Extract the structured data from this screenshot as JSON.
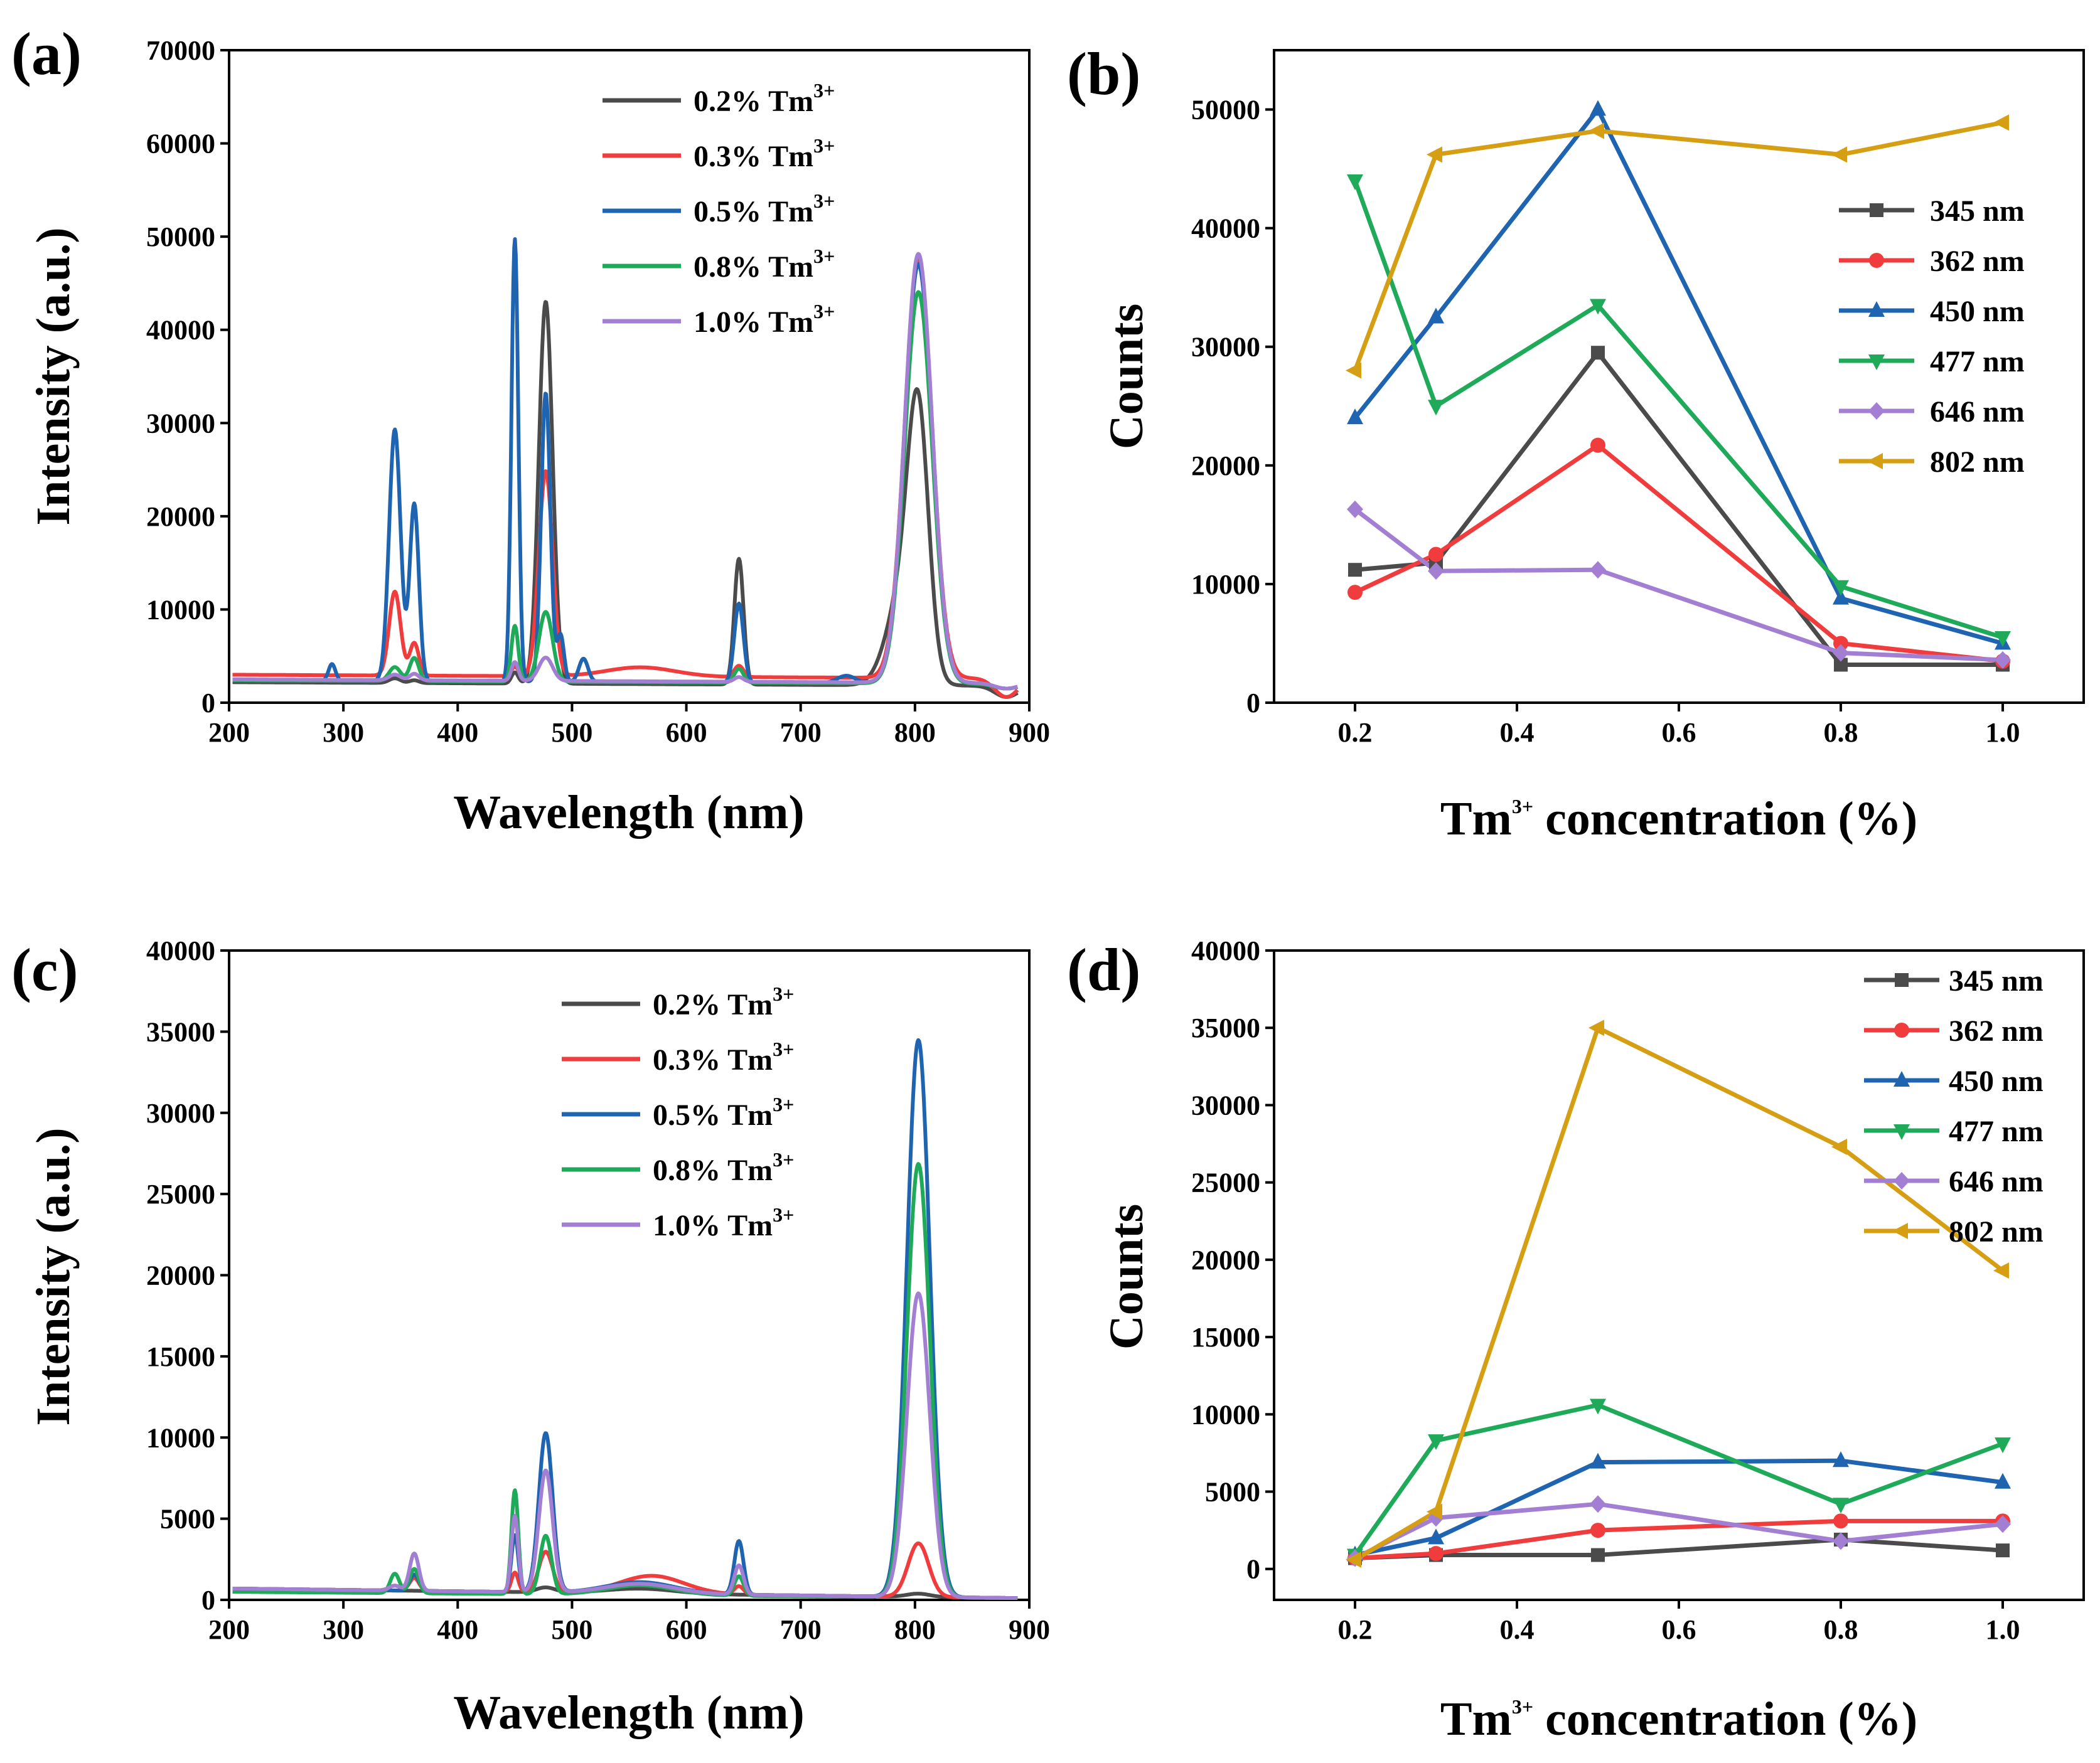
{
  "figure": {
    "colors": {
      "black": "#4b4b4b",
      "red": "#f03c3c",
      "blue": "#1f64b0",
      "green": "#1faa5a",
      "purple": "#a37fd3",
      "gold": "#d69e12"
    }
  },
  "chart_data": [
    {
      "panel": "(a)",
      "type": "line",
      "xlabel": "Wavelength (nm)",
      "ylabel": "Intensity (a.u.)",
      "xlim": [
        200,
        900
      ],
      "ylim": [
        0,
        70000
      ],
      "xticks": [
        200,
        300,
        400,
        500,
        600,
        700,
        800,
        900
      ],
      "yticks": [
        0,
        10000,
        20000,
        30000,
        40000,
        50000,
        60000,
        70000
      ],
      "legend_position": "top-center",
      "series": [
        {
          "name": "0.2% Tm",
          "sup": "3+",
          "color": "black",
          "baseline": [
            [
              200,
              2200
            ],
            [
              900,
              1800
            ]
          ],
          "peaks": [
            [
              345,
              500,
              5
            ],
            [
              362,
              300,
              4
            ],
            [
              450,
              1200,
              3
            ],
            [
              477,
              41000,
              6
            ],
            [
              646,
              13500,
              4
            ],
            [
              790,
              10000,
              14
            ],
            [
              803,
              25000,
              9
            ],
            [
              880,
              -1200,
              10
            ]
          ]
        },
        {
          "name": "0.3% Tm",
          "sup": "3+",
          "color": "red",
          "baseline": [
            [
              200,
              3000
            ],
            [
              900,
              2600
            ]
          ],
          "peaks": [
            [
              345,
              9000,
              5
            ],
            [
              362,
              3500,
              4
            ],
            [
              450,
              1000,
              3
            ],
            [
              477,
              22000,
              6
            ],
            [
              560,
              1000,
              30
            ],
            [
              646,
              1200,
              4
            ],
            [
              803,
              45000,
              12
            ],
            [
              880,
              -2000,
              10
            ]
          ]
        },
        {
          "name": "0.5% Tm",
          "sup": "3+",
          "color": "blue",
          "baseline": [
            [
              200,
              2400
            ],
            [
              900,
              2000
            ]
          ],
          "peaks": [
            [
              290,
              1800,
              3
            ],
            [
              345,
              27000,
              5
            ],
            [
              362,
              19000,
              4
            ],
            [
              450,
              47500,
              3
            ],
            [
              477,
              31000,
              4
            ],
            [
              490,
              5000,
              3
            ],
            [
              510,
              2500,
              4
            ],
            [
              646,
              8500,
              4
            ],
            [
              740,
              800,
              8
            ],
            [
              803,
              45000,
              12
            ],
            [
              880,
              -500,
              10
            ]
          ]
        },
        {
          "name": "0.8% Tm",
          "sup": "3+",
          "color": "green",
          "baseline": [
            [
              200,
              2400
            ],
            [
              900,
              2000
            ]
          ],
          "peaks": [
            [
              345,
              1500,
              5
            ],
            [
              362,
              2500,
              4
            ],
            [
              450,
              6000,
              3
            ],
            [
              477,
              7500,
              6
            ],
            [
              646,
              1500,
              4
            ],
            [
              803,
              42000,
              12
            ],
            [
              880,
              -500,
              10
            ]
          ]
        },
        {
          "name": "1.0% Tm",
          "sup": "3+",
          "color": "purple",
          "baseline": [
            [
              200,
              2500
            ],
            [
              900,
              2100
            ]
          ],
          "peaks": [
            [
              345,
              600,
              5
            ],
            [
              362,
              700,
              4
            ],
            [
              450,
              2000,
              3
            ],
            [
              477,
              2500,
              6
            ],
            [
              646,
              500,
              4
            ],
            [
              803,
              46000,
              12
            ],
            [
              880,
              -600,
              10
            ]
          ]
        }
      ]
    },
    {
      "panel": "(b)",
      "type": "line",
      "xlabel_main": "Tm",
      "xlabel_sup": "3+",
      "xlabel_rest": "concentration (%)",
      "ylabel": "Counts",
      "xlim": [
        0.1,
        1.1
      ],
      "ylim": [
        0,
        55000
      ],
      "xticks": [
        0.2,
        0.4,
        0.6,
        0.8,
        1.0
      ],
      "xtick_labels": [
        "0.2",
        "0.4",
        "0.6",
        "0.8",
        "1.0"
      ],
      "yticks": [
        0,
        10000,
        20000,
        30000,
        40000,
        50000
      ],
      "legend_position": "right",
      "x": [
        0.2,
        0.3,
        0.5,
        0.8,
        1.0
      ],
      "series": [
        {
          "name": "345 nm",
          "color": "black",
          "marker": "square",
          "values": [
            11200,
            11800,
            29500,
            3200,
            3200
          ]
        },
        {
          "name": "362 nm",
          "color": "red",
          "marker": "circle",
          "values": [
            9300,
            12500,
            21700,
            5000,
            3500
          ]
        },
        {
          "name": "450 nm",
          "color": "blue",
          "marker": "triangle-up",
          "values": [
            24000,
            32500,
            50000,
            8800,
            5000
          ]
        },
        {
          "name": "477 nm",
          "color": "green",
          "marker": "triangle-down",
          "values": [
            44000,
            25000,
            33500,
            9800,
            5500
          ]
        },
        {
          "name": "646 nm",
          "color": "purple",
          "marker": "diamond",
          "values": [
            16300,
            11100,
            11200,
            4200,
            3600
          ]
        },
        {
          "name": "802 nm",
          "color": "gold",
          "marker": "triangle-left",
          "values": [
            28000,
            46200,
            48200,
            46200,
            48900
          ]
        }
      ]
    },
    {
      "panel": "(c)",
      "type": "line",
      "xlabel": "Wavelength (nm)",
      "ylabel": "Intensity (a.u.)",
      "xlim": [
        200,
        900
      ],
      "ylim": [
        0,
        40000
      ],
      "xticks": [
        200,
        300,
        400,
        500,
        600,
        700,
        800,
        900
      ],
      "yticks": [
        0,
        5000,
        10000,
        15000,
        20000,
        25000,
        30000,
        35000,
        40000
      ],
      "legend_position": "top-center",
      "series": [
        {
          "name": "0.2% Tm",
          "sup": "3+",
          "color": "black",
          "baseline": [
            [
              200,
              700
            ],
            [
              900,
              100
            ]
          ],
          "peaks": [
            [
              477,
              300,
              8
            ],
            [
              560,
              300,
              30
            ],
            [
              803,
              200,
              10
            ]
          ]
        },
        {
          "name": "0.3% Tm",
          "sup": "3+",
          "color": "red",
          "baseline": [
            [
              200,
              700
            ],
            [
              900,
              100
            ]
          ],
          "peaks": [
            [
              345,
              300,
              5
            ],
            [
              362,
              800,
              4
            ],
            [
              450,
              1200,
              3
            ],
            [
              477,
              2500,
              6
            ],
            [
              570,
              1100,
              28
            ],
            [
              646,
              500,
              4
            ],
            [
              803,
              3300,
              9
            ]
          ]
        },
        {
          "name": "0.5% Tm",
          "sup": "3+",
          "color": "blue",
          "baseline": [
            [
              200,
              700
            ],
            [
              900,
              100
            ]
          ],
          "peaks": [
            [
              362,
              1000,
              4
            ],
            [
              450,
              3500,
              3
            ],
            [
              477,
              9800,
              6
            ],
            [
              560,
              700,
              30
            ],
            [
              646,
              3300,
              4
            ],
            [
              803,
              34300,
              10
            ]
          ]
        },
        {
          "name": "0.8% Tm",
          "sup": "3+",
          "color": "green",
          "baseline": [
            [
              200,
              500
            ],
            [
              900,
              100
            ]
          ],
          "peaks": [
            [
              345,
              1200,
              4
            ],
            [
              362,
              1500,
              4
            ],
            [
              450,
              6400,
              3
            ],
            [
              477,
              3600,
              5
            ],
            [
              560,
              600,
              30
            ],
            [
              646,
              1200,
              4
            ],
            [
              803,
              26700,
              10
            ]
          ]
        },
        {
          "name": "1.0% Tm",
          "sup": "3+",
          "color": "purple",
          "baseline": [
            [
              200,
              700
            ],
            [
              900,
              100
            ]
          ],
          "peaks": [
            [
              345,
              300,
              5
            ],
            [
              362,
              2300,
              4
            ],
            [
              450,
              4700,
              3
            ],
            [
              477,
              7500,
              6
            ],
            [
              560,
              600,
              30
            ],
            [
              646,
              1800,
              4
            ],
            [
              803,
              18700,
              10
            ]
          ]
        }
      ]
    },
    {
      "panel": "(d)",
      "type": "line",
      "xlabel_main": "Tm",
      "xlabel_sup": "3+",
      "xlabel_rest": "concentration (%)",
      "ylabel": "Counts",
      "xlim": [
        0.1,
        1.1
      ],
      "ylim": [
        -2000,
        40000
      ],
      "xticks": [
        0.2,
        0.4,
        0.6,
        0.8,
        1.0
      ],
      "xtick_labels": [
        "0.2",
        "0.4",
        "0.6",
        "0.8",
        "1.0"
      ],
      "yticks": [
        0,
        5000,
        10000,
        15000,
        20000,
        25000,
        30000,
        35000,
        40000
      ],
      "legend_position": "top-right",
      "x": [
        0.2,
        0.3,
        0.5,
        0.8,
        1.0
      ],
      "series": [
        {
          "name": "345 nm",
          "color": "black",
          "marker": "square",
          "values": [
            700,
            900,
            900,
            1900,
            1200
          ]
        },
        {
          "name": "362 nm",
          "color": "red",
          "marker": "circle",
          "values": [
            700,
            1000,
            2500,
            3100,
            3100
          ]
        },
        {
          "name": "450 nm",
          "color": "blue",
          "marker": "triangle-up",
          "values": [
            900,
            2000,
            6900,
            7000,
            5600
          ]
        },
        {
          "name": "477 nm",
          "color": "green",
          "marker": "triangle-down",
          "values": [
            900,
            8300,
            10600,
            4200,
            8100
          ]
        },
        {
          "name": "646 nm",
          "color": "purple",
          "marker": "diamond",
          "values": [
            700,
            3300,
            4200,
            1800,
            2900
          ]
        },
        {
          "name": "802 nm",
          "color": "gold",
          "marker": "triangle-left",
          "values": [
            600,
            3700,
            35000,
            27300,
            19300
          ]
        }
      ]
    }
  ]
}
